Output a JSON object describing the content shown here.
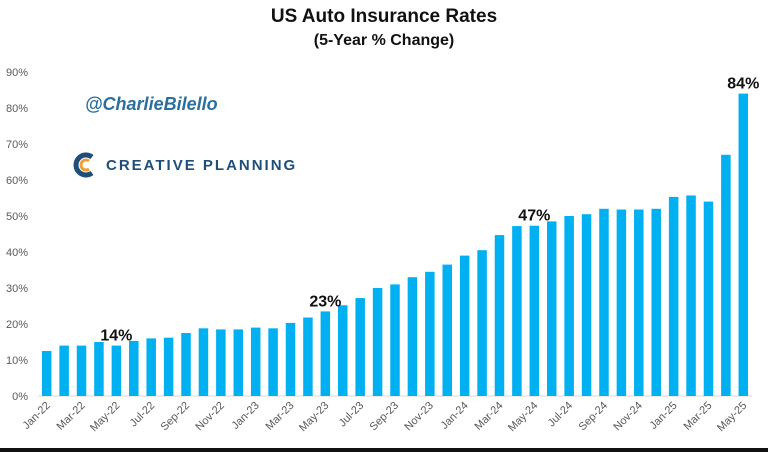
{
  "title": "US Auto Insurance Rates",
  "subtitle": "(5-Year % Change)",
  "watermark": {
    "handle": "@CharlieBilello",
    "logo_text": "CREATIVE PLANNING"
  },
  "colors": {
    "bar": "#00b0f0",
    "text": "#111111",
    "axis": "#d9d9d9",
    "handle": "#2a6f9e",
    "logo": "#1f4e79"
  },
  "chart_data": {
    "type": "bar",
    "title": "US Auto Insurance Rates",
    "subtitle": "(5-Year % Change)",
    "categories": [
      "Jan-22",
      "Feb-22",
      "Mar-22",
      "Apr-22",
      "May-22",
      "Jun-22",
      "Jul-22",
      "Aug-22",
      "Sep-22",
      "Oct-22",
      "Nov-22",
      "Dec-22",
      "Jan-23",
      "Feb-23",
      "Mar-23",
      "Apr-23",
      "May-23",
      "Jun-23",
      "Jul-23",
      "Aug-23",
      "Sep-23",
      "Oct-23",
      "Nov-23",
      "Dec-23",
      "Jan-24",
      "Feb-24",
      "Mar-24",
      "Apr-24",
      "May-24",
      "Jun-24",
      "Jul-24",
      "Aug-24",
      "Sep-24",
      "Oct-24",
      "Nov-24",
      "Dec-24",
      "Jan-25",
      "Feb-25",
      "Mar-25",
      "Apr-25",
      "May-25"
    ],
    "values": [
      12.5,
      14,
      14,
      15,
      14,
      15.3,
      16,
      16.2,
      17.5,
      18.8,
      18.5,
      18.5,
      19,
      18.8,
      20.3,
      21.8,
      23.5,
      25.2,
      27.2,
      30,
      31,
      33,
      34.5,
      36.5,
      39,
      40.5,
      44.7,
      47.2,
      47.3,
      48.5,
      50,
      50.5,
      52,
      51.8,
      51.8,
      52,
      55.3,
      55.7,
      54,
      67,
      84
    ],
    "x_tick_labels": [
      "Jan-22",
      "Mar-22",
      "May-22",
      "Jul-22",
      "Sep-22",
      "Nov-22",
      "Jan-23",
      "Mar-23",
      "May-23",
      "Jul-23",
      "Sep-23",
      "Nov-23",
      "Jan-24",
      "Mar-24",
      "May-24",
      "Jul-24",
      "Sep-24",
      "Nov-24",
      "Jan-25",
      "Mar-25",
      "May-25"
    ],
    "y_tick_labels": [
      "0%",
      "10%",
      "20%",
      "30%",
      "40%",
      "50%",
      "60%",
      "70%",
      "80%",
      "90%"
    ],
    "ylim": [
      0,
      90
    ],
    "grid": false,
    "data_labels": [
      {
        "category": "May-22",
        "text": "14%"
      },
      {
        "category": "May-23",
        "text": "23%"
      },
      {
        "category": "May-24",
        "text": "47%"
      },
      {
        "category": "May-25",
        "text": "84%"
      }
    ],
    "xlabel": "",
    "ylabel": ""
  }
}
